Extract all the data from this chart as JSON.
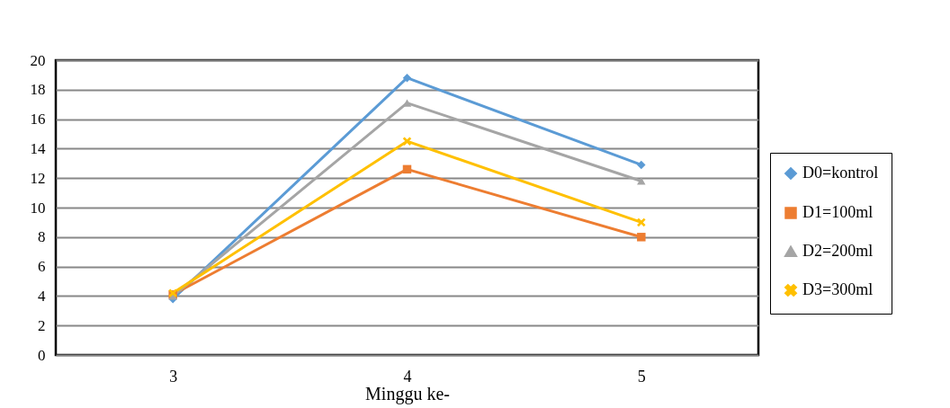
{
  "chart_data": {
    "type": "line",
    "xlabel": "Minggu ke-",
    "categories": [
      "3",
      "4",
      "5"
    ],
    "series": [
      {
        "name": "D0=kontrol",
        "color": "#5b9bd5",
        "marker": "diamond",
        "values": [
          3.8,
          18.8,
          12.9
        ]
      },
      {
        "name": "D1=100ml",
        "color": "#ed7d31",
        "marker": "square",
        "values": [
          4.1,
          12.6,
          8.0
        ]
      },
      {
        "name": "D2=200ml",
        "color": "#a5a5a5",
        "marker": "triangle",
        "values": [
          4.0,
          17.1,
          11.8
        ]
      },
      {
        "name": "D3=300ml",
        "color": "#ffc000",
        "marker": "cross",
        "values": [
          4.2,
          14.5,
          9.0
        ]
      }
    ],
    "ylim": [
      0,
      20
    ],
    "yticks": [
      0,
      2,
      4,
      6,
      8,
      10,
      12,
      14,
      16,
      18,
      20
    ],
    "grid": "y",
    "legend": "right",
    "line_style": "solid"
  }
}
